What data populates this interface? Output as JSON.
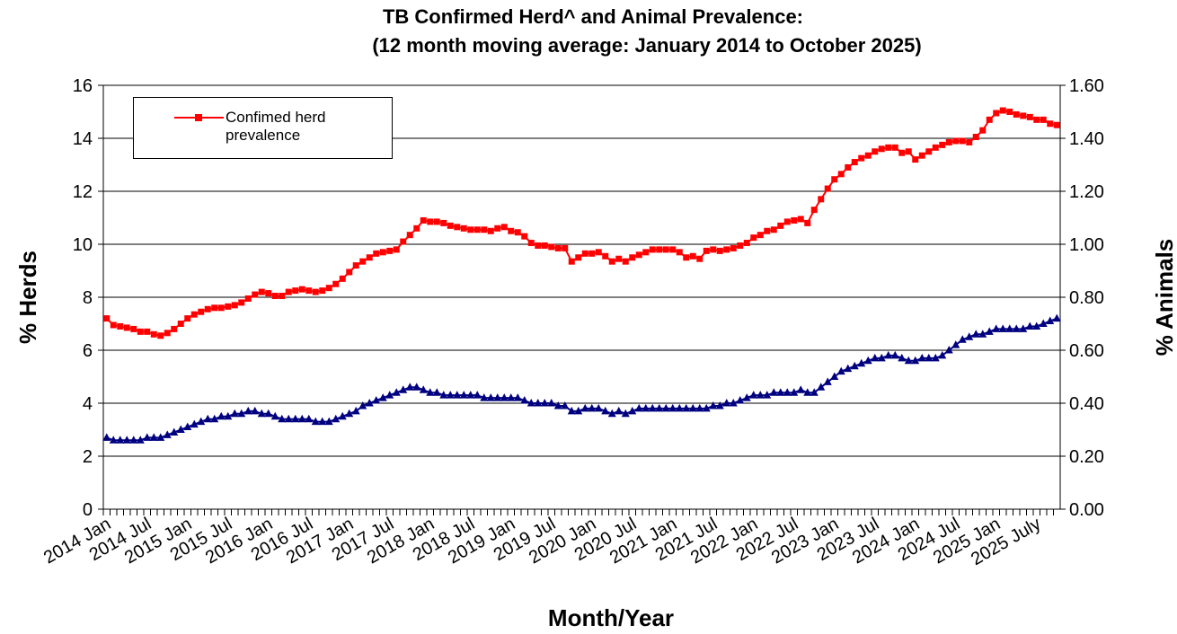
{
  "chart_data": {
    "type": "line",
    "title": "TB Confirmed Herd^ and Animal Prevalence:",
    "subtitle": "(12 month moving average: January 2014 to October 2025)",
    "x_label": "Month/Year",
    "y_label": "% Herds",
    "y2_label": "% Animals",
    "categories": [
      "2014 Jan",
      null,
      null,
      null,
      null,
      null,
      "2014 Jul",
      null,
      null,
      null,
      null,
      null,
      "2015 Jan",
      null,
      null,
      null,
      null,
      null,
      "2015 Jul",
      null,
      null,
      null,
      null,
      null,
      "2016 Jan",
      null,
      null,
      null,
      null,
      null,
      "2016 Jul",
      null,
      null,
      null,
      null,
      null,
      "2017 Jan",
      null,
      null,
      null,
      null,
      null,
      "2017 Jul",
      null,
      null,
      null,
      null,
      null,
      "2018 Jan",
      null,
      null,
      null,
      null,
      null,
      "2018 Jul",
      null,
      null,
      null,
      null,
      null,
      "2019 Jan",
      null,
      null,
      null,
      null,
      null,
      "2019 Jul",
      null,
      null,
      null,
      null,
      null,
      "2020 Jan",
      null,
      null,
      null,
      null,
      null,
      "2020 Jul",
      null,
      null,
      null,
      null,
      null,
      "2021 Jan",
      null,
      null,
      null,
      null,
      null,
      "2021 Jul",
      null,
      null,
      null,
      null,
      null,
      "2022 Jan",
      null,
      null,
      null,
      null,
      null,
      "2022 Jul",
      null,
      null,
      null,
      null,
      null,
      "2023 Jan",
      null,
      null,
      null,
      null,
      null,
      "2023 Jul",
      null,
      null,
      null,
      null,
      null,
      "2024 Jan",
      null,
      null,
      null,
      null,
      null,
      "2024 Jul",
      null,
      null,
      null,
      null,
      null,
      "2025 Jan",
      null,
      null,
      null,
      null,
      null,
      "2025 July",
      null,
      null,
      null
    ],
    "series": [
      {
        "name": "Confimed herd prevalence",
        "color": "#ff0000",
        "marker": "square",
        "values": [
          7.2,
          6.95,
          6.9,
          6.85,
          6.8,
          6.7,
          6.7,
          6.6,
          6.55,
          6.65,
          6.8,
          7.0,
          7.2,
          7.35,
          7.45,
          7.55,
          7.6,
          7.6,
          7.65,
          7.7,
          7.8,
          7.95,
          8.1,
          8.2,
          8.15,
          8.05,
          8.05,
          8.2,
          8.25,
          8.3,
          8.25,
          8.2,
          8.25,
          8.35,
          8.5,
          8.7,
          8.95,
          9.2,
          9.35,
          9.5,
          9.65,
          9.7,
          9.75,
          9.8,
          10.1,
          10.35,
          10.6,
          10.9,
          10.85,
          10.85,
          10.8,
          10.7,
          10.65,
          10.6,
          10.55,
          10.55,
          10.55,
          10.5,
          10.6,
          10.65,
          10.5,
          10.45,
          10.3,
          10.05,
          9.95,
          9.95,
          9.9,
          9.85,
          9.85,
          9.35,
          9.5,
          9.65,
          9.65,
          9.7,
          9.55,
          9.35,
          9.45,
          9.35,
          9.5,
          9.6,
          9.7,
          9.8,
          9.8,
          9.8,
          9.8,
          9.7,
          9.5,
          9.55,
          9.45,
          9.75,
          9.8,
          9.75,
          9.8,
          9.85,
          9.95,
          10.05,
          10.25,
          10.35,
          10.5,
          10.55,
          10.7,
          10.85,
          10.9,
          10.95,
          10.8,
          11.3,
          11.7,
          12.1,
          12.45,
          12.65,
          12.9,
          13.1,
          13.25,
          13.35,
          13.5,
          13.6,
          13.65,
          13.65,
          13.45,
          13.5,
          13.2,
          13.35,
          13.5,
          13.65,
          13.75,
          13.85,
          13.9,
          13.9,
          13.85,
          14.05,
          14.3,
          14.7,
          14.95,
          15.05,
          15.0,
          14.9,
          14.85,
          14.8,
          14.7,
          14.7,
          14.55,
          14.5
        ]
      },
      {
        "color": "#000080",
        "marker": "triangle",
        "axis": "y2",
        "values": [
          0.27,
          0.26,
          0.26,
          0.26,
          0.26,
          0.26,
          0.27,
          0.27,
          0.27,
          0.28,
          0.29,
          0.3,
          0.31,
          0.32,
          0.33,
          0.34,
          0.34,
          0.35,
          0.35,
          0.36,
          0.36,
          0.37,
          0.37,
          0.36,
          0.36,
          0.35,
          0.34,
          0.34,
          0.34,
          0.34,
          0.34,
          0.33,
          0.33,
          0.33,
          0.34,
          0.35,
          0.36,
          0.37,
          0.39,
          0.4,
          0.41,
          0.42,
          0.43,
          0.44,
          0.45,
          0.46,
          0.46,
          0.45,
          0.44,
          0.44,
          0.43,
          0.43,
          0.43,
          0.43,
          0.43,
          0.43,
          0.42,
          0.42,
          0.42,
          0.42,
          0.42,
          0.42,
          0.41,
          0.4,
          0.4,
          0.4,
          0.4,
          0.39,
          0.39,
          0.37,
          0.37,
          0.38,
          0.38,
          0.38,
          0.37,
          0.36,
          0.37,
          0.36,
          0.37,
          0.38,
          0.38,
          0.38,
          0.38,
          0.38,
          0.38,
          0.38,
          0.38,
          0.38,
          0.38,
          0.38,
          0.39,
          0.39,
          0.4,
          0.4,
          0.41,
          0.42,
          0.43,
          0.43,
          0.43,
          0.44,
          0.44,
          0.44,
          0.44,
          0.45,
          0.44,
          0.44,
          0.46,
          0.48,
          0.5,
          0.52,
          0.53,
          0.54,
          0.55,
          0.56,
          0.57,
          0.57,
          0.58,
          0.58,
          0.57,
          0.56,
          0.56,
          0.57,
          0.57,
          0.57,
          0.58,
          0.6,
          0.62,
          0.64,
          0.65,
          0.66,
          0.66,
          0.67,
          0.68,
          0.68,
          0.68,
          0.68,
          0.68,
          0.69,
          0.69,
          0.7,
          0.71,
          0.72
        ]
      }
    ],
    "ylim": [
      0,
      16
    ],
    "yticks": [
      0,
      2,
      4,
      6,
      8,
      10,
      12,
      14,
      16
    ],
    "y2lim": [
      0,
      1.6
    ],
    "y2ticks": [
      {
        "value": 0,
        "label": "0.00"
      },
      {
        "value": 0.2,
        "label": "0.20"
      },
      {
        "value": 0.4,
        "label": "0.40"
      },
      {
        "value": 0.6,
        "label": "0.60"
      },
      {
        "value": 0.8,
        "label": "0.80"
      },
      {
        "value": 1.0,
        "label": "1.00"
      },
      {
        "value": 1.2,
        "label": "1.20"
      },
      {
        "value": 1.4,
        "label": "1.40"
      },
      {
        "value": 1.6,
        "label": "1.60"
      }
    ],
    "grid": true,
    "legend": "upper left"
  }
}
